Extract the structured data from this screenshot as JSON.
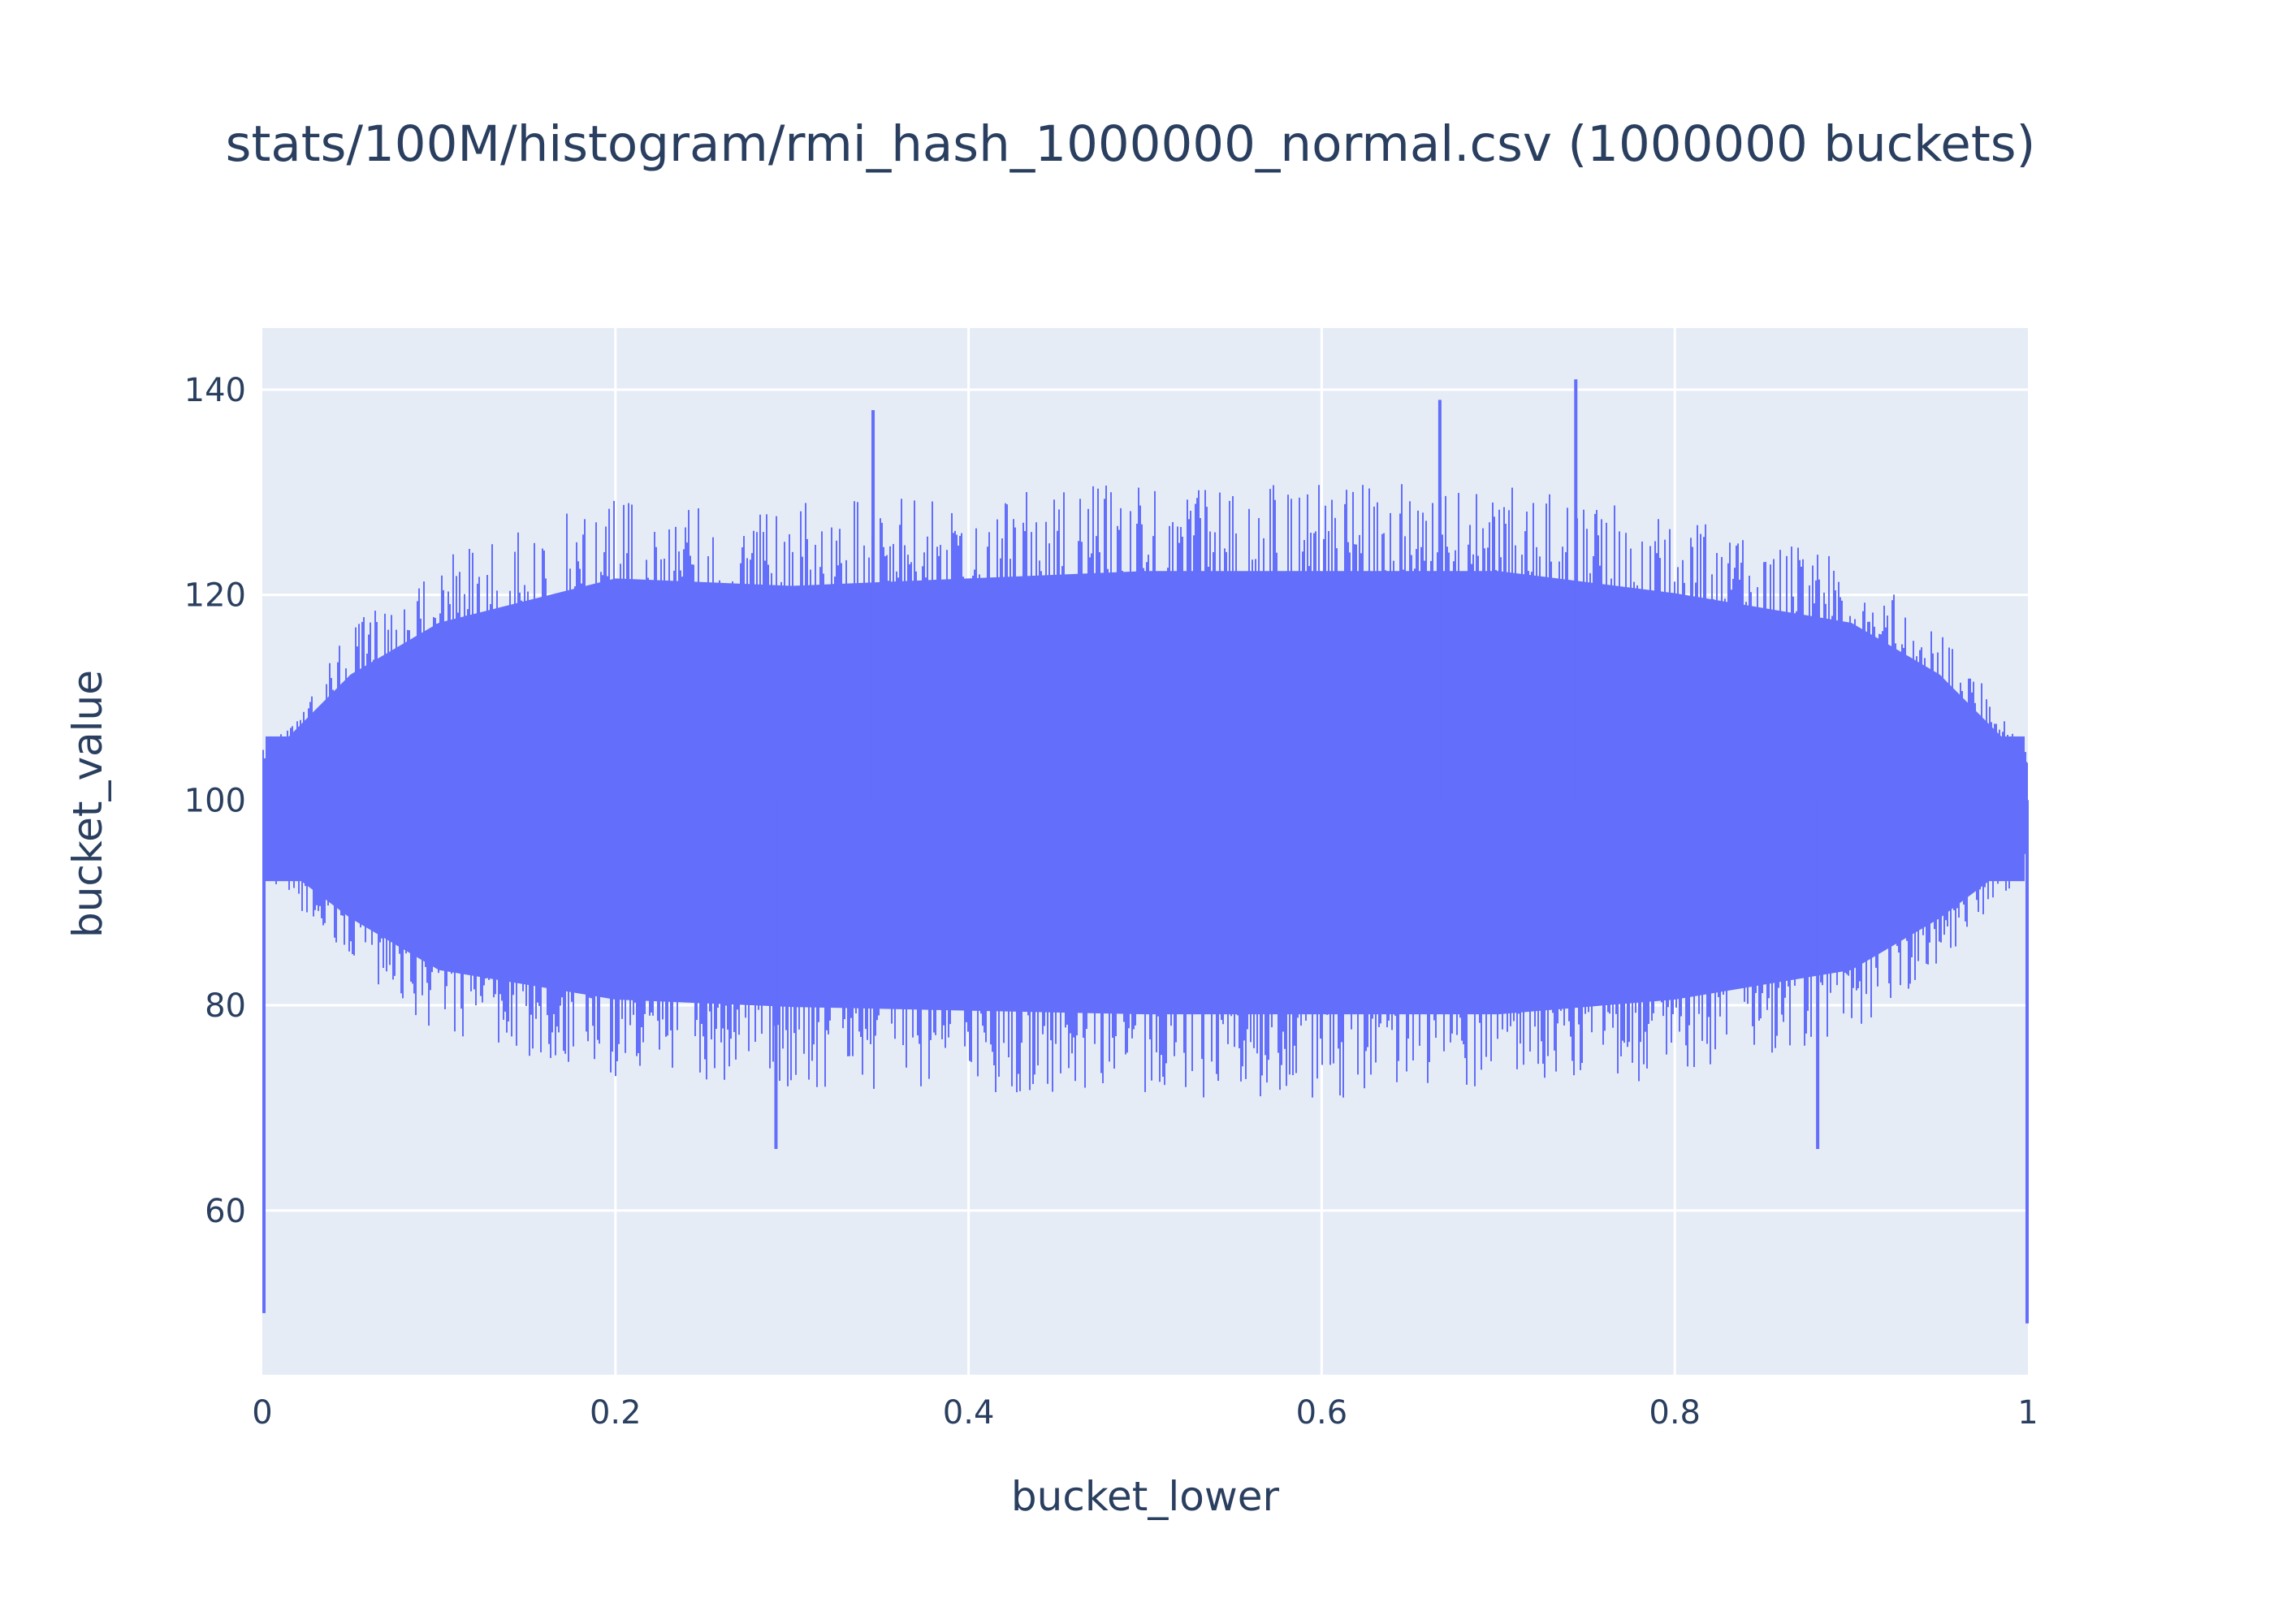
{
  "chart_data": {
    "type": "histogram",
    "title": "stats/100M/histogram/rmi_hash_1000000_normal.csv (1000000 buckets)",
    "xlabel": "bucket_lower",
    "ylabel": "bucket_value",
    "xlim": [
      0,
      1
    ],
    "ylim": [
      44,
      146
    ],
    "x_ticks": [
      0,
      0.2,
      0.4,
      0.6,
      0.8,
      1
    ],
    "x_tick_labels": [
      "0",
      "0.2",
      "0.4",
      "0.6",
      "0.8",
      "1"
    ],
    "y_ticks": [
      60,
      80,
      100,
      120,
      140
    ],
    "y_tick_labels": [
      "60",
      "80",
      "100",
      "120",
      "140"
    ],
    "bucket_count": 1000000,
    "expected_value": 100,
    "envelope": {
      "x": [
        0,
        0.05,
        0.1,
        0.2,
        0.3,
        0.5,
        0.7,
        0.8,
        0.9,
        0.95,
        1
      ],
      "max": [
        105,
        117,
        124,
        130,
        129,
        131,
        131,
        128,
        124,
        117,
        105
      ],
      "min": [
        93,
        84,
        77,
        73,
        72,
        71,
        71,
        73,
        77,
        84,
        93
      ]
    },
    "spikes": [
      {
        "x": 0,
        "value": 50
      },
      {
        "x": 0.345,
        "value": 138
      },
      {
        "x": 0.29,
        "value": 66
      },
      {
        "x": 0.666,
        "value": 139
      },
      {
        "x": 0.743,
        "value": 141
      },
      {
        "x": 0.88,
        "value": 66
      },
      {
        "x": 1,
        "value": 49
      }
    ],
    "grid": true,
    "legend": "none",
    "colors": {
      "bars": "#636efa",
      "plot_background": "#e5ecf6",
      "gridlines": "#ffffff",
      "text": "#2a3f5f"
    }
  }
}
